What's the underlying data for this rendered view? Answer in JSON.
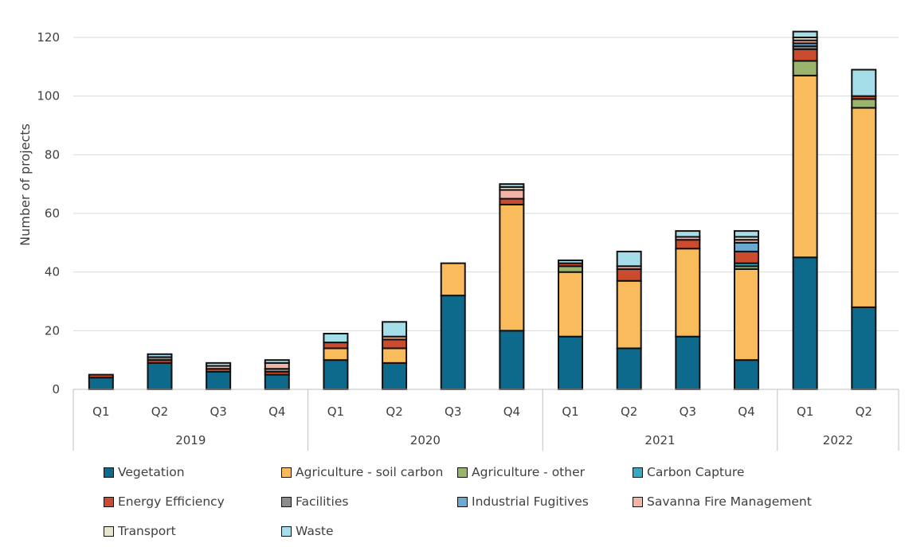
{
  "chart_data": {
    "type": "bar",
    "stacked": true,
    "ylabel": "Number of projects",
    "ylim": [
      0,
      120
    ],
    "yticks": [
      "0",
      "20",
      "40",
      "60",
      "80",
      "100",
      "120"
    ],
    "grid": true,
    "legend_position": "bottom",
    "categories": [
      "Q1",
      "Q2",
      "Q3",
      "Q4",
      "Q1",
      "Q2",
      "Q3",
      "Q4",
      "Q1",
      "Q2",
      "Q3",
      "Q4",
      "Q1",
      "Q2"
    ],
    "years": [
      {
        "label": "2019",
        "quarters": 4
      },
      {
        "label": "2020",
        "quarters": 4
      },
      {
        "label": "2021",
        "quarters": 4
      },
      {
        "label": "2022",
        "quarters": 2
      }
    ],
    "series": [
      {
        "name": "Vegetation",
        "color": "#0e6a8c",
        "values": [
          4,
          9,
          6,
          5,
          10,
          9,
          32,
          20,
          18,
          14,
          18,
          10,
          45,
          28
        ]
      },
      {
        "name": "Agriculture - soil carbon",
        "color": "#f9bb5c",
        "values": [
          0,
          0,
          0,
          0,
          4,
          5,
          11,
          43,
          22,
          23,
          30,
          31,
          62,
          68
        ]
      },
      {
        "name": "Agriculture - other",
        "color": "#9ab46e",
        "values": [
          0,
          0,
          0,
          0,
          0,
          0,
          0,
          0,
          2,
          0,
          0,
          1,
          5,
          3
        ]
      },
      {
        "name": "Carbon Capture",
        "color": "#3aa9c0",
        "values": [
          0,
          0,
          0,
          0,
          0,
          0,
          0,
          0,
          0,
          0,
          0,
          1,
          0,
          0
        ]
      },
      {
        "name": "Energy Efficiency",
        "color": "#cb4b2f",
        "values": [
          1,
          1,
          1,
          1,
          2,
          3,
          0,
          2,
          1,
          4,
          3,
          4,
          4,
          1
        ]
      },
      {
        "name": "Facilities",
        "color": "#8c8c8c",
        "values": [
          0,
          1,
          0,
          1,
          0,
          0,
          0,
          0,
          0,
          0,
          0,
          0,
          1,
          0
        ]
      },
      {
        "name": "Industrial Fugitives",
        "color": "#6aaad2",
        "values": [
          0,
          0,
          0,
          0,
          0,
          0,
          0,
          0,
          0,
          0,
          0,
          3,
          1,
          0
        ]
      },
      {
        "name": "Savanna Fire Management",
        "color": "#f2b4a6",
        "values": [
          0,
          0,
          1,
          2,
          0,
          1,
          0,
          3,
          0,
          1,
          1,
          1,
          1,
          0
        ]
      },
      {
        "name": "Transport",
        "color": "#e8e6cf",
        "values": [
          0,
          0,
          0,
          0,
          0,
          0,
          0,
          1,
          0,
          0,
          0,
          1,
          1,
          0
        ]
      },
      {
        "name": "Waste",
        "color": "#a5dde8",
        "values": [
          0,
          1,
          1,
          1,
          3,
          5,
          0,
          1,
          1,
          5,
          2,
          2,
          2,
          9
        ]
      }
    ]
  }
}
